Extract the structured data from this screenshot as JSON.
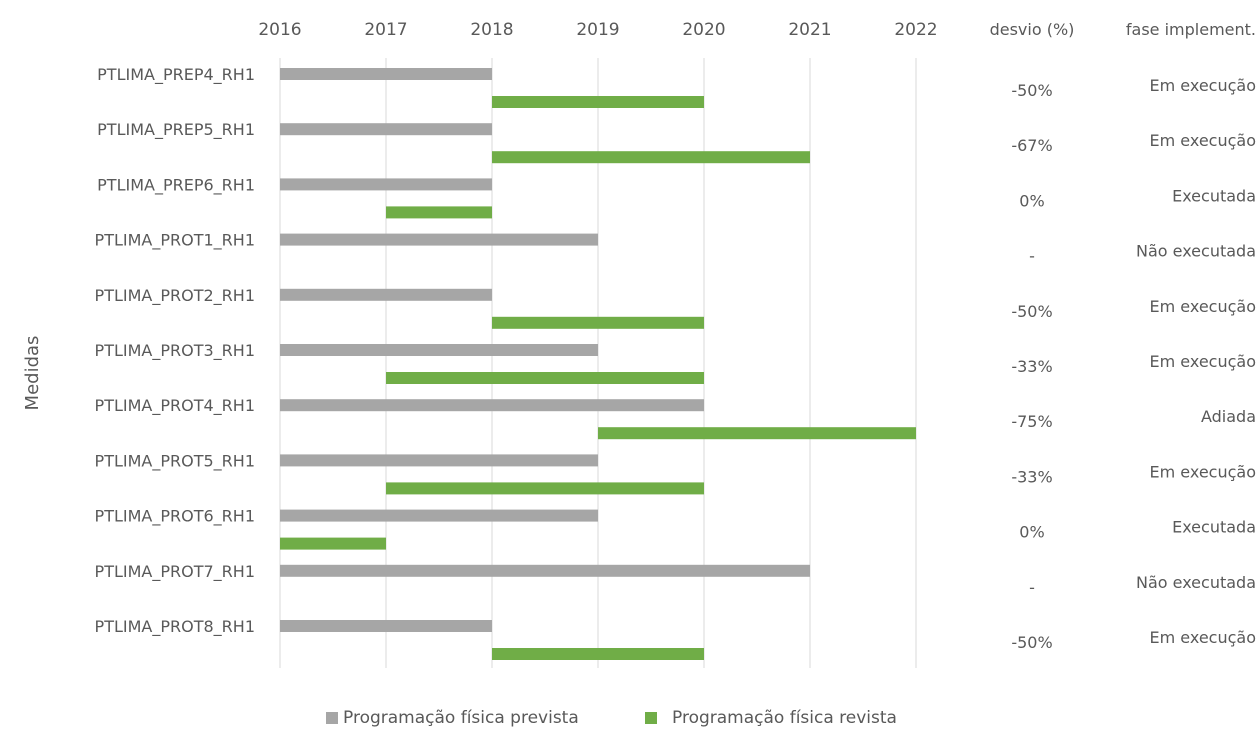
{
  "chart_data": {
    "type": "gantt",
    "title": "",
    "ylabel": "Medidas",
    "x_range": [
      2016,
      2022
    ],
    "x_ticks": [
      "2016",
      "2017",
      "2018",
      "2019",
      "2020",
      "2021",
      "2022"
    ],
    "grid": true,
    "legend_position": "bottom",
    "column_headers": {
      "desvio": "desvio (%)",
      "fase": "fase implement."
    },
    "series": [
      {
        "name": "Programação física prevista",
        "color": "#a6a6a6"
      },
      {
        "name": "Programação física revista",
        "color": "#70ad47"
      }
    ],
    "rows": [
      {
        "name": "PTLIMA_PREP4_RH1",
        "prevista": [
          2016,
          2018
        ],
        "revista": [
          2018,
          2020
        ],
        "desvio": "-50%",
        "fase": "Em execução"
      },
      {
        "name": "PTLIMA_PREP5_RH1",
        "prevista": [
          2016,
          2018
        ],
        "revista": [
          2018,
          2021
        ],
        "desvio": "-67%",
        "fase": "Em execução"
      },
      {
        "name": "PTLIMA_PREP6_RH1",
        "prevista": [
          2016,
          2018
        ],
        "revista": [
          2017,
          2018
        ],
        "desvio": "0%",
        "fase": "Executada"
      },
      {
        "name": "PTLIMA_PROT1_RH1",
        "prevista": [
          2016,
          2019
        ],
        "revista": null,
        "desvio": "-",
        "fase": "Não executada"
      },
      {
        "name": "PTLIMA_PROT2_RH1",
        "prevista": [
          2016,
          2018
        ],
        "revista": [
          2018,
          2020
        ],
        "desvio": "-50%",
        "fase": "Em execução"
      },
      {
        "name": "PTLIMA_PROT3_RH1",
        "prevista": [
          2016,
          2019
        ],
        "revista": [
          2017,
          2020
        ],
        "desvio": "-33%",
        "fase": "Em execução"
      },
      {
        "name": "PTLIMA_PROT4_RH1",
        "prevista": [
          2016,
          2020
        ],
        "revista": [
          2019,
          2022
        ],
        "desvio": "-75%",
        "fase": "Adiada"
      },
      {
        "name": "PTLIMA_PROT5_RH1",
        "prevista": [
          2016,
          2019
        ],
        "revista": [
          2017,
          2020
        ],
        "desvio": "-33%",
        "fase": "Em execução"
      },
      {
        "name": "PTLIMA_PROT6_RH1",
        "prevista": [
          2016,
          2019
        ],
        "revista": [
          2016,
          2017
        ],
        "desvio": "0%",
        "fase": "Executada"
      },
      {
        "name": "PTLIMA_PROT7_RH1",
        "prevista": [
          2016,
          2021
        ],
        "revista": null,
        "desvio": "-",
        "fase": "Não executada"
      },
      {
        "name": "PTLIMA_PROT8_RH1",
        "prevista": [
          2016,
          2018
        ],
        "revista": [
          2018,
          2020
        ],
        "desvio": "-50%",
        "fase": "Em execução"
      }
    ]
  }
}
